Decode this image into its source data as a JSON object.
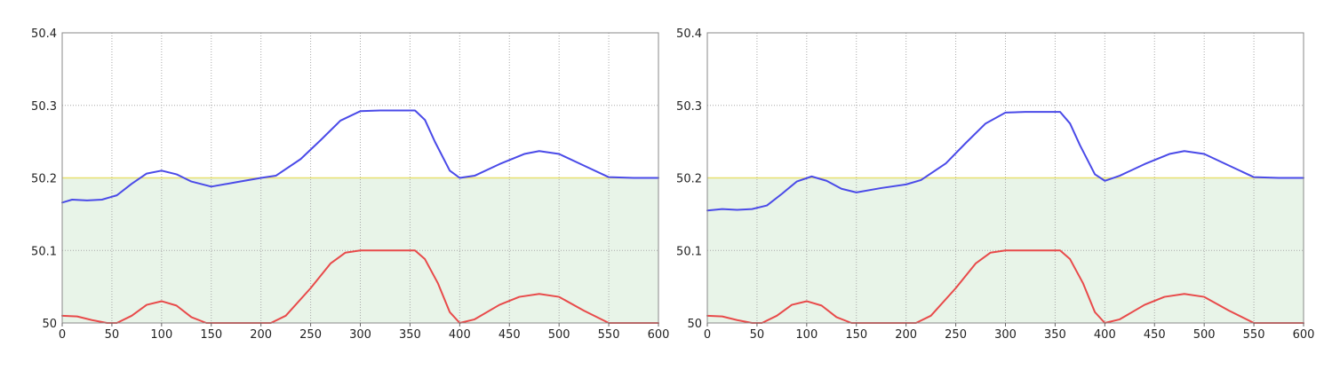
{
  "chart_data": [
    {
      "type": "line",
      "title": "",
      "xlabel": "",
      "ylabel": "",
      "xlim": [
        0,
        600
      ],
      "ylim": [
        50,
        50.4
      ],
      "x_ticks": [
        0,
        50,
        100,
        150,
        200,
        250,
        300,
        350,
        400,
        450,
        500,
        550,
        600
      ],
      "y_ticks": [
        50,
        50.1,
        50.2,
        50.3,
        50.4
      ],
      "x_tick_labels": [
        "0",
        "50",
        "100",
        "150",
        "200",
        "250",
        "300",
        "350",
        "400",
        "450",
        "500",
        "550",
        "600"
      ],
      "y_tick_labels": [
        "50",
        "50.1",
        "50.2",
        "50.3",
        "50.4"
      ],
      "grid": true,
      "band": {
        "y0": 50,
        "y1": 50.2,
        "color": "#e8f4e8",
        "edge_color": "#e8e070"
      },
      "series": [
        {
          "color": "#4a4ae8",
          "points": [
            [
              0,
              50.166
            ],
            [
              10,
              50.17
            ],
            [
              25,
              50.169
            ],
            [
              40,
              50.17
            ],
            [
              55,
              50.176
            ],
            [
              70,
              50.192
            ],
            [
              85,
              50.206
            ],
            [
              100,
              50.21
            ],
            [
              115,
              50.205
            ],
            [
              130,
              50.195
            ],
            [
              150,
              50.188
            ],
            [
              175,
              50.194
            ],
            [
              200,
              50.2
            ],
            [
              215,
              50.203
            ],
            [
              240,
              50.226
            ],
            [
              260,
              50.252
            ],
            [
              280,
              50.279
            ],
            [
              300,
              50.292
            ],
            [
              320,
              50.293
            ],
            [
              355,
              50.293
            ],
            [
              365,
              50.28
            ],
            [
              375,
              50.25
            ],
            [
              390,
              50.21
            ],
            [
              400,
              50.2
            ],
            [
              415,
              50.203
            ],
            [
              440,
              50.219
            ],
            [
              465,
              50.233
            ],
            [
              480,
              50.237
            ],
            [
              500,
              50.233
            ],
            [
              525,
              50.217
            ],
            [
              550,
              50.201
            ],
            [
              575,
              50.2
            ],
            [
              600,
              50.2
            ]
          ]
        },
        {
          "color": "#e84a4a",
          "points": [
            [
              0,
              50.01
            ],
            [
              15,
              50.009
            ],
            [
              30,
              50.004
            ],
            [
              45,
              50.0
            ],
            [
              55,
              50.0
            ],
            [
              70,
              50.01
            ],
            [
              85,
              50.025
            ],
            [
              100,
              50.03
            ],
            [
              115,
              50.024
            ],
            [
              130,
              50.008
            ],
            [
              145,
              50.0
            ],
            [
              210,
              50.0
            ],
            [
              225,
              50.01
            ],
            [
              250,
              50.048
            ],
            [
              270,
              50.082
            ],
            [
              285,
              50.097
            ],
            [
              300,
              50.1
            ],
            [
              355,
              50.1
            ],
            [
              365,
              50.088
            ],
            [
              378,
              50.055
            ],
            [
              390,
              50.015
            ],
            [
              400,
              50.0
            ],
            [
              415,
              50.005
            ],
            [
              440,
              50.025
            ],
            [
              460,
              50.036
            ],
            [
              480,
              50.04
            ],
            [
              500,
              50.036
            ],
            [
              525,
              50.017
            ],
            [
              550,
              50.0
            ],
            [
              600,
              50.0
            ]
          ]
        }
      ]
    },
    {
      "type": "line",
      "title": "",
      "xlabel": "",
      "ylabel": "",
      "xlim": [
        0,
        600
      ],
      "ylim": [
        50,
        50.4
      ],
      "x_ticks": [
        0,
        50,
        100,
        150,
        200,
        250,
        300,
        350,
        400,
        450,
        500,
        550,
        600
      ],
      "y_ticks": [
        50,
        50.1,
        50.2,
        50.3,
        50.4
      ],
      "x_tick_labels": [
        "0",
        "50",
        "100",
        "150",
        "200",
        "250",
        "300",
        "350",
        "400",
        "450",
        "500",
        "550",
        "600"
      ],
      "y_tick_labels": [
        "50",
        "50.1",
        "50.2",
        "50.3",
        "50.4"
      ],
      "grid": true,
      "band": {
        "y0": 50,
        "y1": 50.2,
        "color": "#e8f4e8",
        "edge_color": "#e8e070"
      },
      "series": [
        {
          "color": "#4a4ae8",
          "points": [
            [
              0,
              50.155
            ],
            [
              15,
              50.157
            ],
            [
              30,
              50.156
            ],
            [
              45,
              50.157
            ],
            [
              60,
              50.162
            ],
            [
              75,
              50.178
            ],
            [
              90,
              50.195
            ],
            [
              105,
              50.202
            ],
            [
              120,
              50.196
            ],
            [
              135,
              50.185
            ],
            [
              150,
              50.18
            ],
            [
              175,
              50.186
            ],
            [
              200,
              50.191
            ],
            [
              215,
              50.197
            ],
            [
              240,
              50.22
            ],
            [
              260,
              50.248
            ],
            [
              280,
              50.275
            ],
            [
              300,
              50.29
            ],
            [
              320,
              50.291
            ],
            [
              355,
              50.291
            ],
            [
              365,
              50.275
            ],
            [
              375,
              50.245
            ],
            [
              390,
              50.205
            ],
            [
              400,
              50.196
            ],
            [
              415,
              50.203
            ],
            [
              440,
              50.219
            ],
            [
              465,
              50.233
            ],
            [
              480,
              50.237
            ],
            [
              500,
              50.233
            ],
            [
              525,
              50.217
            ],
            [
              550,
              50.201
            ],
            [
              575,
              50.2
            ],
            [
              600,
              50.2
            ]
          ]
        },
        {
          "color": "#e84a4a",
          "points": [
            [
              0,
              50.01
            ],
            [
              15,
              50.009
            ],
            [
              30,
              50.004
            ],
            [
              45,
              50.0
            ],
            [
              55,
              50.0
            ],
            [
              70,
              50.01
            ],
            [
              85,
              50.025
            ],
            [
              100,
              50.03
            ],
            [
              115,
              50.024
            ],
            [
              130,
              50.008
            ],
            [
              145,
              50.0
            ],
            [
              210,
              50.0
            ],
            [
              225,
              50.01
            ],
            [
              250,
              50.048
            ],
            [
              270,
              50.082
            ],
            [
              285,
              50.097
            ],
            [
              300,
              50.1
            ],
            [
              355,
              50.1
            ],
            [
              365,
              50.088
            ],
            [
              378,
              50.055
            ],
            [
              390,
              50.015
            ],
            [
              400,
              50.0
            ],
            [
              415,
              50.005
            ],
            [
              440,
              50.025
            ],
            [
              460,
              50.036
            ],
            [
              480,
              50.04
            ],
            [
              500,
              50.036
            ],
            [
              525,
              50.017
            ],
            [
              550,
              50.0
            ],
            [
              600,
              50.0
            ]
          ]
        }
      ]
    }
  ]
}
